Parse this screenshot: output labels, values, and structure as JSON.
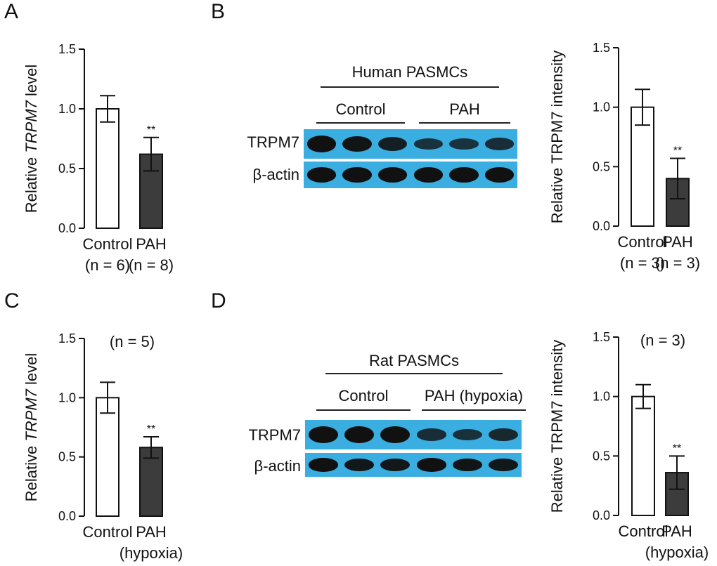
{
  "panel_letters": [
    "A",
    "B",
    "C",
    "D"
  ],
  "colors": {
    "control": "#ffffff",
    "pah": "#3c3c3c",
    "blot_bg": "#3aaee0"
  },
  "blots": [
    {
      "group_label": "Human PASMCs",
      "left_label": "Control",
      "right_label": "PAH",
      "lanes": [
        "TRPM7",
        "β-actin"
      ],
      "band_intensity": [
        [
          1.0,
          0.95,
          0.8,
          0.5,
          0.5,
          0.6
        ],
        [
          1.0,
          1.0,
          1.0,
          1.0,
          1.0,
          1.0
        ]
      ]
    },
    {
      "group_label": "Rat PASMCs",
      "left_label": "Control",
      "right_label": "PAH (hypoxia)",
      "lanes": [
        "TRPM7",
        "β-actin"
      ],
      "band_intensity": [
        [
          1.0,
          1.0,
          1.0,
          0.6,
          0.55,
          0.7
        ],
        [
          1.0,
          0.9,
          0.9,
          1.0,
          0.95,
          0.9
        ]
      ]
    }
  ],
  "chart_data": [
    {
      "panel": "A",
      "type": "bar",
      "ylabel_parts": [
        "Relative ",
        "TRPM7",
        " level"
      ],
      "ylabel_italic_index": 1,
      "ylim": [
        0,
        1.5
      ],
      "yticks": [
        "0.0",
        "0.5",
        "1.0",
        "1.5"
      ],
      "categories": [
        [
          "Control",
          "(n = 6)"
        ],
        [
          "PAH",
          "(n = 8)"
        ]
      ],
      "values": [
        1.0,
        0.62
      ],
      "errors": [
        0.11,
        0.14
      ],
      "annotations": [
        "",
        "**"
      ],
      "note": ""
    },
    {
      "panel": "B",
      "type": "bar",
      "ylabel_parts": [
        "Relative TRPM7 intensity"
      ],
      "ylabel_italic_index": -1,
      "ylim": [
        0,
        1.5
      ],
      "yticks": [
        "0.0",
        "0.5",
        "1.0",
        "1.5"
      ],
      "categories": [
        [
          "Control",
          "(n = 3)"
        ],
        [
          "PAH",
          "(n = 3)"
        ]
      ],
      "values": [
        1.0,
        0.4
      ],
      "errors": [
        0.15,
        0.17
      ],
      "annotations": [
        "",
        "**"
      ],
      "note": ""
    },
    {
      "panel": "C",
      "type": "bar",
      "ylabel_parts": [
        "Relative ",
        "TRPM7",
        " level"
      ],
      "ylabel_italic_index": 1,
      "ylim": [
        0,
        1.5
      ],
      "yticks": [
        "0.0",
        "0.5",
        "1.0",
        "1.5"
      ],
      "categories": [
        [
          "Control"
        ],
        [
          "PAH",
          "(hypoxia)"
        ]
      ],
      "values": [
        1.0,
        0.58
      ],
      "errors": [
        0.13,
        0.09
      ],
      "annotations": [
        "",
        "**"
      ],
      "note": "(n = 5)"
    },
    {
      "panel": "D",
      "type": "bar",
      "ylabel_parts": [
        "Relative TRPM7 intensity"
      ],
      "ylabel_italic_index": -1,
      "ylim": [
        0,
        1.5
      ],
      "yticks": [
        "0.0",
        "0.5",
        "1.0",
        "1.5"
      ],
      "categories": [
        [
          "Control"
        ],
        [
          "PAH",
          "(hypoxia)"
        ]
      ],
      "values": [
        1.0,
        0.36
      ],
      "errors": [
        0.1,
        0.14
      ],
      "annotations": [
        "",
        "**"
      ],
      "note": "(n = 3)"
    }
  ]
}
